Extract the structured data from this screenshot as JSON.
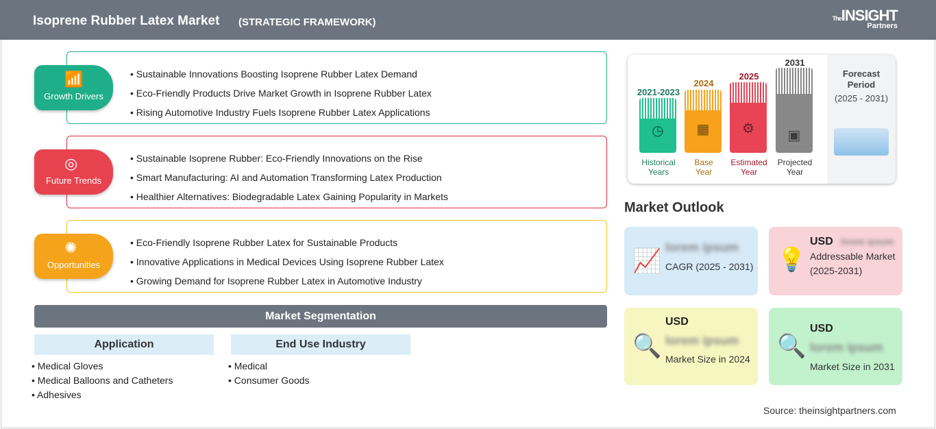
{
  "header": {
    "title": "Isoprene Rubber Latex Market",
    "subtitle": "(STRATEGIC FRAMEWORK)",
    "logo": {
      "top": "The",
      "main": "INSIGHT",
      "bottom": "Partners"
    }
  },
  "sections": [
    {
      "label": "Growth Drivers",
      "color": "#1fae8a",
      "icon": "growth-chart-icon",
      "items": [
        "Sustainable Innovations Boosting Isoprene Rubber Latex Demand",
        "Eco-Friendly Products Drive Market Growth in Isoprene Rubber Latex",
        "Rising Automotive Industry Fuels Isoprene Rubber Latex Applications"
      ]
    },
    {
      "label": "Future Trends",
      "color": "#e8424f",
      "icon": "target-icon",
      "items": [
        "Sustainable Isoprene Rubber: Eco-Friendly Innovations on the Rise",
        "Smart Manufacturing: AI and Automation Transforming Latex Production",
        "Healthier Alternatives: Biodegradable Latex Gaining Popularity in Markets"
      ]
    },
    {
      "label": "Opportunities",
      "color": "#f5a31a",
      "icon": "lightbulb-icon",
      "items": [
        "Eco-Friendly Isoprene Rubber Latex for Sustainable Products",
        "Innovative Applications in Medical Devices Using Isoprene Rubber Latex",
        "Growing Demand for Isoprene Rubber Latex in Automotive Industry"
      ]
    }
  ],
  "segmentation": {
    "title": "Market Segmentation",
    "groups": [
      {
        "title": "Application",
        "items": [
          "Medical Gloves",
          "Medical Balloons and Catheters",
          "Adhesives"
        ]
      },
      {
        "title": "End Use Industry",
        "items": [
          "Medical",
          "Consumer Goods"
        ]
      }
    ]
  },
  "timeline": {
    "periods": [
      {
        "year": "2021-2023",
        "label1": "Historical",
        "label2": "Years",
        "color": "#1fbf8f",
        "text_color": "#1d7a5e",
        "icon": "history-icon"
      },
      {
        "year": "2024",
        "label1": "Base",
        "label2": "Year",
        "color": "#f8a21b",
        "text_color": "#a86a10",
        "icon": "calendar-icon"
      },
      {
        "year": "2025",
        "label1": "Estimated",
        "label2": "Year",
        "color": "#e84455",
        "text_color": "#a3192d",
        "icon": "gear-monitor-icon"
      },
      {
        "year": "2031",
        "label1": "Projected",
        "label2": "Year",
        "color": "#888888",
        "text_color": "#333333",
        "icon": "presentation-icon"
      }
    ],
    "forecast": {
      "line1": "Forecast",
      "line2": "Period",
      "range": "(2025 - 2031)"
    }
  },
  "outlook": {
    "title": "Market Outlook",
    "cards": [
      {
        "prefix": "",
        "value": "lorem ipsum",
        "label": "CAGR (2025 - 2031)",
        "color": "#d6eaf7",
        "icon": "bar-growth-icon"
      },
      {
        "prefix": "USD",
        "value": "lorem ipsum",
        "label": "Addressable Market (2025-2031)",
        "color": "#f8d3d8",
        "icon": "dollar-bulb-icon"
      },
      {
        "prefix": "USD",
        "value": "lorem ipsum",
        "label": "Market Size in 2024",
        "color": "#f8f6c0",
        "icon": "magnifier-dollar-icon"
      },
      {
        "prefix": "USD",
        "value": "lorem ipsum",
        "label": "Market Size in 2031",
        "color": "#c2f2cc",
        "icon": "magnifier-dollar-icon"
      }
    ]
  },
  "source": "Source: theinsightpartners.com"
}
